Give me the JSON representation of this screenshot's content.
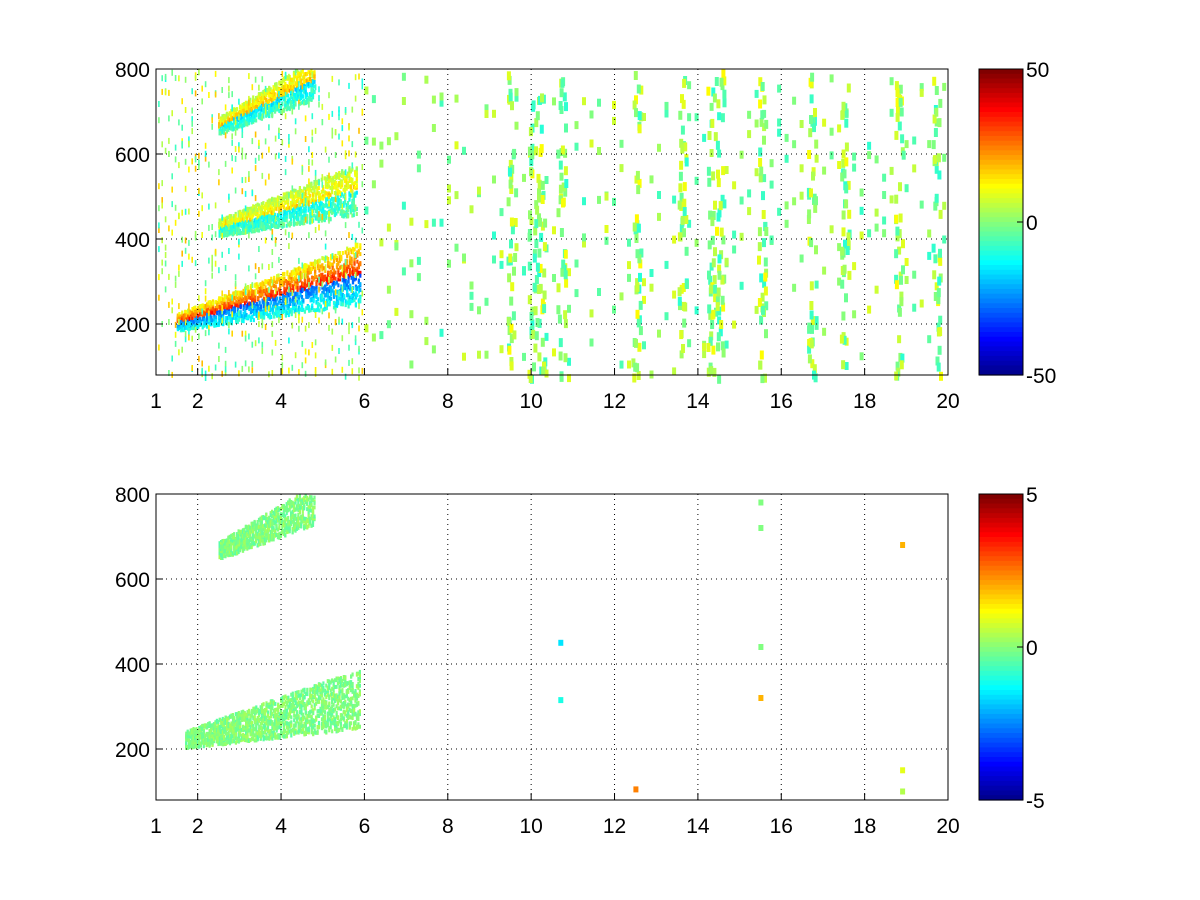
{
  "chart_data": [
    {
      "type": "heatmap",
      "title": "",
      "xlabel": "",
      "ylabel": "",
      "xlim": [
        1,
        20
      ],
      "ylim": [
        80,
        800
      ],
      "xticks": [
        1,
        2,
        4,
        6,
        8,
        10,
        12,
        14,
        16,
        18,
        20
      ],
      "yticks": [
        200,
        400,
        600,
        800
      ],
      "grid": true,
      "colormap": "jet",
      "colorbar": {
        "range": [
          -50,
          50
        ],
        "ticks": [
          50,
          0,
          -50
        ]
      },
      "features": [
        {
          "description_value": "lower band",
          "x_range": [
            1.5,
            5.9
          ],
          "y_center_at_x1": 195,
          "y_center_at_x5_8": 320,
          "value": 35
        },
        {
          "description_value": "middle band",
          "x_range": [
            2.5,
            5.8
          ],
          "y_center_at_x2_5": 430,
          "y_center_at_x5_8": 520,
          "value": 15
        },
        {
          "description_value": "upper band",
          "x_range": [
            2.5,
            4.8
          ],
          "y_center_at_x2_5": 670,
          "y_center_at_x4_8": 780,
          "value": 20
        }
      ],
      "noise_columns_x": [
        9.5,
        10.0,
        10.2,
        10.7,
        12.5,
        13.6,
        14.3,
        14.5,
        15.5,
        16.7,
        17.5,
        18.8,
        19.7
      ]
    },
    {
      "type": "heatmap",
      "title": "",
      "xlabel": "",
      "ylabel": "",
      "xlim": [
        1,
        20
      ],
      "ylim": [
        80,
        800
      ],
      "xticks": [
        1,
        2,
        4,
        6,
        8,
        10,
        12,
        14,
        16,
        18,
        20
      ],
      "yticks": [
        200,
        400,
        600,
        800
      ],
      "grid": true,
      "colormap": "jet",
      "colorbar": {
        "range": [
          -5,
          5
        ],
        "ticks": [
          5,
          0,
          -5
        ]
      },
      "features": [
        {
          "description_value": "lower band",
          "x_range": [
            1.7,
            5.9
          ],
          "y_center_at_x1": 210,
          "y_center_at_x5_8": 320,
          "value": 0
        },
        {
          "description_value": "upper band",
          "x_range": [
            2.5,
            4.8
          ],
          "y_center_at_x2_5": 670,
          "y_center_at_x4_8": 780,
          "value": 0
        }
      ],
      "isolated_points": [
        {
          "x": 10.7,
          "y": 450,
          "value": -1.5
        },
        {
          "x": 10.7,
          "y": 315,
          "value": -1
        },
        {
          "x": 12.5,
          "y": 105,
          "value": 2.5
        },
        {
          "x": 15.5,
          "y": 780,
          "value": 0
        },
        {
          "x": 15.5,
          "y": 720,
          "value": 0
        },
        {
          "x": 15.5,
          "y": 440,
          "value": 0
        },
        {
          "x": 15.5,
          "y": 320,
          "value": 2
        },
        {
          "x": 18.9,
          "y": 680,
          "value": 2
        },
        {
          "x": 18.9,
          "y": 150,
          "value": 1
        },
        {
          "x": 18.9,
          "y": 100,
          "value": 0.5
        }
      ]
    }
  ]
}
